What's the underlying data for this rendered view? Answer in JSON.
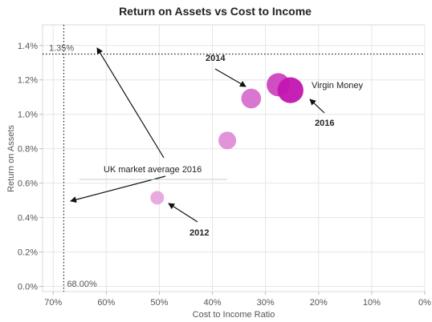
{
  "chart_data": {
    "type": "scatter",
    "title": "Return on Assets vs Cost to Income",
    "xlabel": "Cost to Income Ratio",
    "ylabel": "Return on Assets",
    "x_reversed": true,
    "xlim": [
      0.72,
      0.0
    ],
    "ylim": [
      -0.0003,
      0.0152
    ],
    "x_ticks": [
      0.7,
      0.6,
      0.5,
      0.4,
      0.3,
      0.2,
      0.1,
      0.0
    ],
    "x_tick_labels": [
      "70%",
      "60%",
      "50%",
      "40%",
      "30%",
      "20%",
      "10%",
      "0%"
    ],
    "y_ticks": [
      0.0,
      0.002,
      0.004,
      0.006,
      0.008,
      0.01,
      0.012,
      0.014
    ],
    "y_tick_labels": [
      "0.0%",
      "0.2%",
      "0.4%",
      "0.6%",
      "0.8%",
      "1.0%",
      "1.2%",
      "1.4%"
    ],
    "grid": {
      "x": true,
      "y": true
    },
    "points": [
      {
        "x": 0.504,
        "y": 0.00515,
        "size": 1.0,
        "color": "#e7a6dd"
      },
      {
        "x": 0.372,
        "y": 0.00848,
        "size": 1.3,
        "color": "#e08dd8"
      },
      {
        "x": 0.327,
        "y": 0.01092,
        "size": 1.45,
        "color": "#d76fcf"
      },
      {
        "x": 0.276,
        "y": 0.01172,
        "size": 1.7,
        "color": "#cc44be"
      },
      {
        "x": 0.253,
        "y": 0.0114,
        "size": 1.9,
        "color": "#c215b0"
      }
    ],
    "reference_lines": [
      {
        "axis": "y",
        "value": 0.0135,
        "label": "1.35%"
      },
      {
        "axis": "x",
        "value": 0.68,
        "label": "68.00%"
      }
    ],
    "annotations": [
      {
        "text": "2014",
        "bold": true
      },
      {
        "text": "Virgin Money",
        "bold": false
      },
      {
        "text": "2016",
        "bold": true
      },
      {
        "text": "UK market average 2016",
        "bold": false
      },
      {
        "text": "2012",
        "bold": true
      }
    ]
  }
}
